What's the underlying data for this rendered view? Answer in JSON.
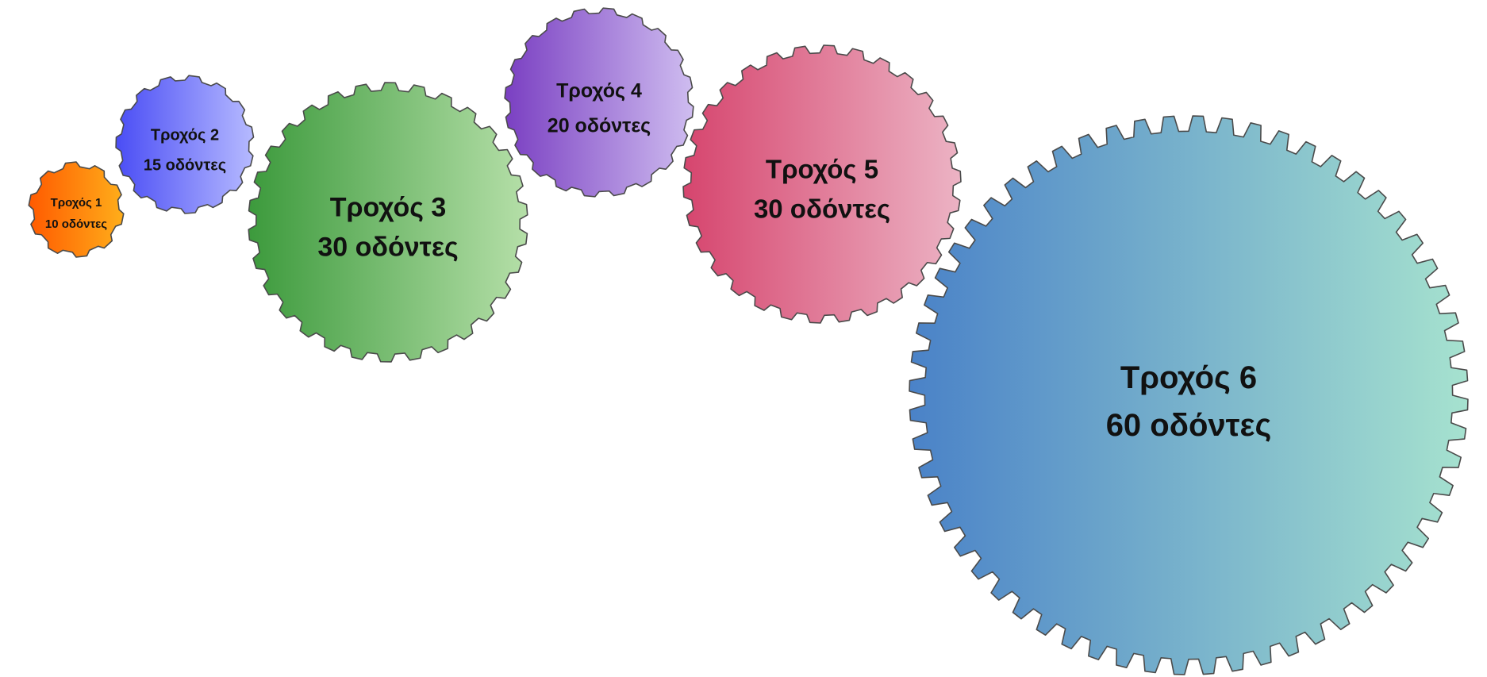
{
  "gears": [
    {
      "id": "gear-1",
      "name": "Τροχός 1",
      "teeth_label": "10 οδόντες",
      "teeth": 10,
      "color_start": "#ff5a00",
      "color_end": "#ffae1a"
    },
    {
      "id": "gear-2",
      "name": "Τροχός 2",
      "teeth_label": "15 οδόντες",
      "teeth": 15,
      "color_start": "#4a4df5",
      "color_end": "#b6baff"
    },
    {
      "id": "gear-3",
      "name": "Τροχός 3",
      "teeth_label": "30 οδόντες",
      "teeth": 30,
      "color_start": "#3c9a3c",
      "color_end": "#b5dfa8"
    },
    {
      "id": "gear-4",
      "name": "Τροχός 4",
      "teeth_label": "20 οδόντες",
      "teeth": 20,
      "color_start": "#7a3fc2",
      "color_end": "#cfbdf0"
    },
    {
      "id": "gear-5",
      "name": "Τροχός 5",
      "teeth_label": "30 οδόντες",
      "teeth": 30,
      "color_start": "#d6456e",
      "color_end": "#ecb3c4"
    },
    {
      "id": "gear-6",
      "name": "Τροχός 6",
      "teeth_label": "60 οδόντες",
      "teeth": 60,
      "color_start": "#4a82c8",
      "color_end": "#a6e2cf"
    }
  ]
}
